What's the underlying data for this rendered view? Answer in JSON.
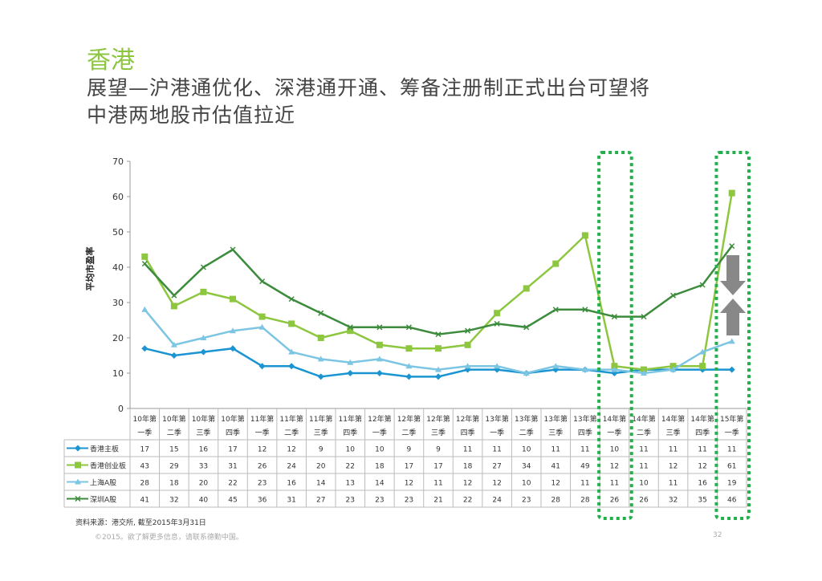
{
  "header": {
    "title": "香港",
    "subtitle_line1": "展望—沪港通优化、深港通开通、筹备注册制正式出台可望将",
    "subtitle_line2": "中港两地股市估值拉近"
  },
  "footer": {
    "source": "资料来源：港交所, 截至2015年3月31日",
    "copyright": "©2015。欲了解更多信息，请联系德勤中国。",
    "page": "32"
  },
  "chart_data": {
    "type": "line",
    "ylabel": "平均市盈率",
    "ylim": [
      0,
      70
    ],
    "yticks": [
      0,
      10,
      20,
      30,
      40,
      50,
      60,
      70
    ],
    "grid": false,
    "legend": "data-table-left",
    "categories": [
      [
        "10年第",
        "一季"
      ],
      [
        "10年第",
        "二季"
      ],
      [
        "10年第",
        "三季"
      ],
      [
        "10年第",
        "四季"
      ],
      [
        "11年第",
        "一季"
      ],
      [
        "11年第",
        "二季"
      ],
      [
        "11年第",
        "三季"
      ],
      [
        "11年第",
        "四季"
      ],
      [
        "12年第",
        "一季"
      ],
      [
        "12年第",
        "二季"
      ],
      [
        "12年第",
        "三季"
      ],
      [
        "12年第",
        "四季"
      ],
      [
        "13年第",
        "一季"
      ],
      [
        "13年第",
        "二季"
      ],
      [
        "13年第",
        "三季"
      ],
      [
        "13年第",
        "四季"
      ],
      [
        "14年第",
        "一季"
      ],
      [
        "14年第",
        "二季"
      ],
      [
        "14年第",
        "三季"
      ],
      [
        "14年第",
        "四季"
      ],
      [
        "15年第",
        "一季"
      ]
    ],
    "series": [
      {
        "name": "香港主板",
        "color": "#1b95d2",
        "marker": "diamond",
        "values": [
          17,
          15,
          16,
          17,
          12,
          12,
          9,
          10,
          10,
          9,
          9,
          11,
          11,
          10,
          11,
          11,
          10,
          11,
          11,
          11,
          11
        ]
      },
      {
        "name": "香港创业板",
        "color": "#8dc63f",
        "marker": "square",
        "values": [
          43,
          29,
          33,
          31,
          26,
          24,
          20,
          22,
          18,
          17,
          17,
          18,
          27,
          34,
          41,
          49,
          12,
          11,
          12,
          12,
          61
        ]
      },
      {
        "name": "上海A股",
        "color": "#7cc5e3",
        "marker": "triangle",
        "values": [
          28,
          18,
          20,
          22,
          23,
          16,
          14,
          13,
          14,
          12,
          11,
          12,
          12,
          10,
          12,
          11,
          11,
          10,
          11,
          16,
          19
        ]
      },
      {
        "name": "深圳A股",
        "color": "#3d8b3d",
        "marker": "x",
        "values": [
          41,
          32,
          40,
          45,
          36,
          31,
          27,
          23,
          23,
          23,
          21,
          22,
          24,
          23,
          28,
          28,
          26,
          26,
          32,
          35,
          46
        ]
      }
    ],
    "highlighted_categories": [
      "14年第一季",
      "15年第一季"
    ],
    "highlight_color": "#22b04b",
    "arrows": "gray-converging-arrows"
  }
}
